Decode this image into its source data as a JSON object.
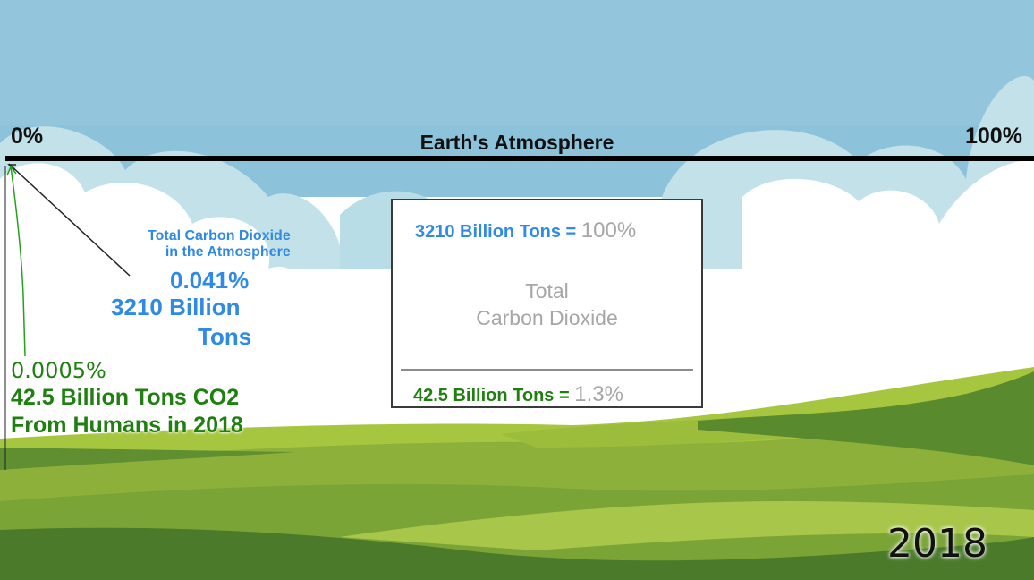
{
  "scale": {
    "left_label": "0%",
    "right_label": "100%",
    "title": "Earth's Atmosphere"
  },
  "total_co2": {
    "title_line1": "Total Carbon Dioxide",
    "title_line2": "in the Atmosphere",
    "percent": "0.041%",
    "tons_line1": "3210 Billion",
    "tons_line2": "Tons"
  },
  "human_co2": {
    "percent": "0.0005%",
    "line1": "42.5 Billion Tons CO2",
    "line2": "From Humans in 2018"
  },
  "box": {
    "top_tons": "3210 Billion Tons =",
    "top_pct": "100%",
    "center_line1": "Total",
    "center_line2": "Carbon Dioxide",
    "bottom_tons": "42.5 Billion Tons =",
    "bottom_pct": "1.3%"
  },
  "year": "2018",
  "colors": {
    "sky": "#8fc3d9",
    "co2_blue": "#2f8ae6",
    "human_green": "#1f7f10",
    "grass": "#8fb53a"
  }
}
